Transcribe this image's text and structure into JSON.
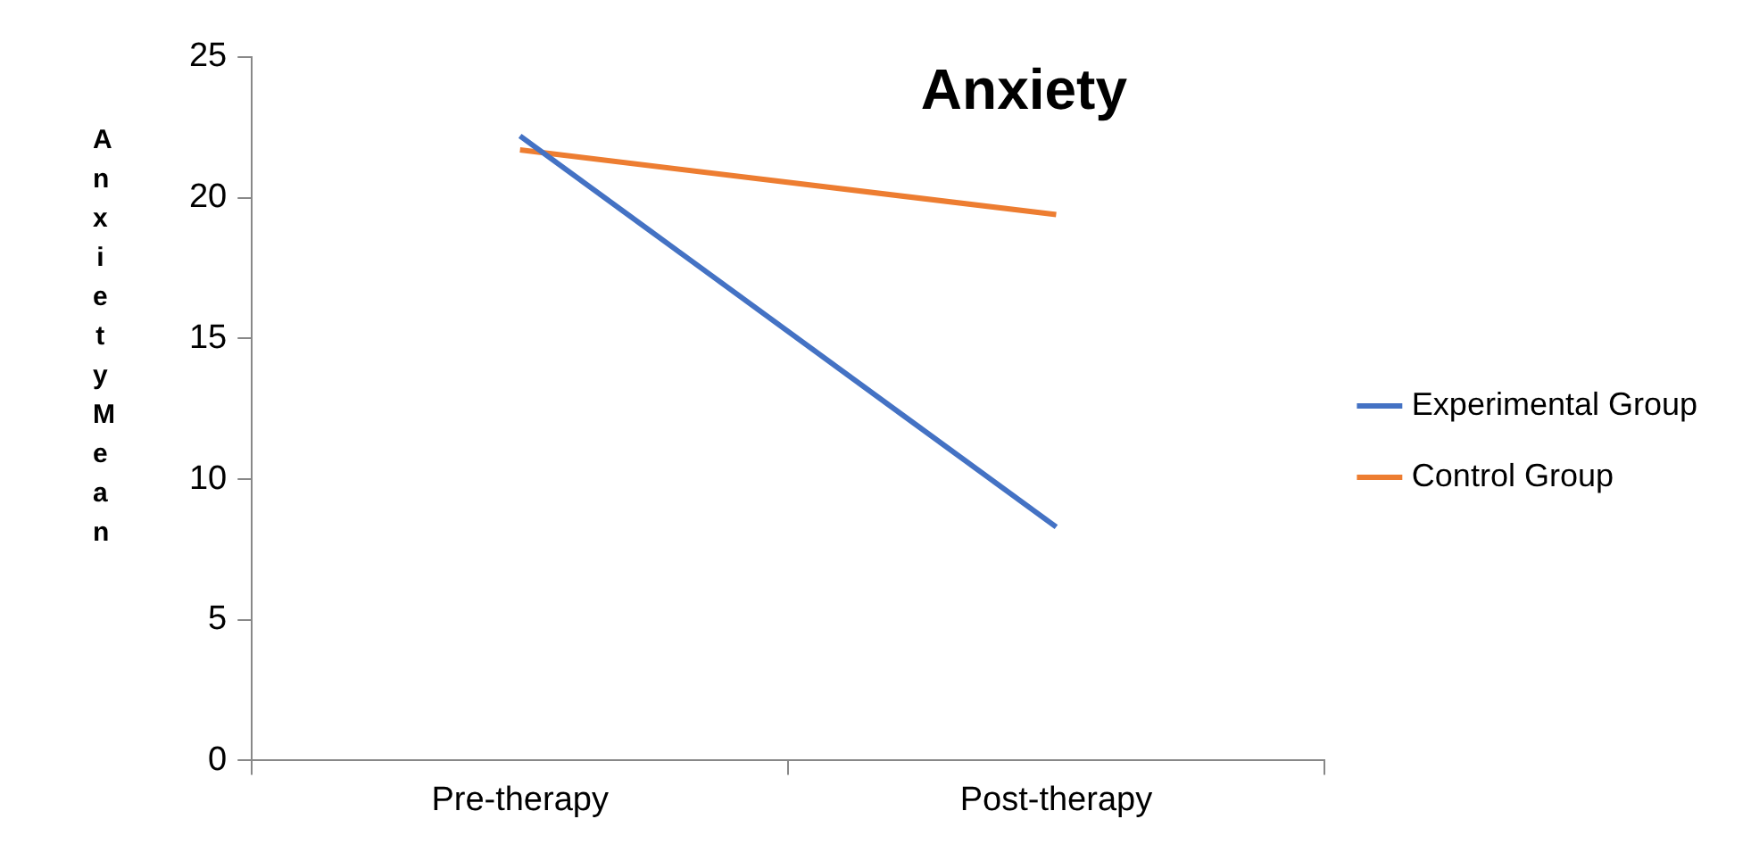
{
  "chart_data": {
    "type": "line",
    "title": "Anxiety",
    "ylabel": "Anxiety Mean",
    "categories": [
      "Pre-therapy",
      "Post-therapy"
    ],
    "series": [
      {
        "name": "Experimental Group",
        "color": "#4472c4",
        "values": [
          22.2,
          8.3
        ]
      },
      {
        "name": "Control Group",
        "color": "#ed7d31",
        "values": [
          21.7,
          19.4
        ]
      }
    ],
    "ylim": [
      0,
      25
    ],
    "yticks": [
      0,
      5,
      10,
      15,
      20,
      25
    ],
    "grid": false,
    "legend": "right",
    "marker": "none",
    "line_style": "solid"
  }
}
